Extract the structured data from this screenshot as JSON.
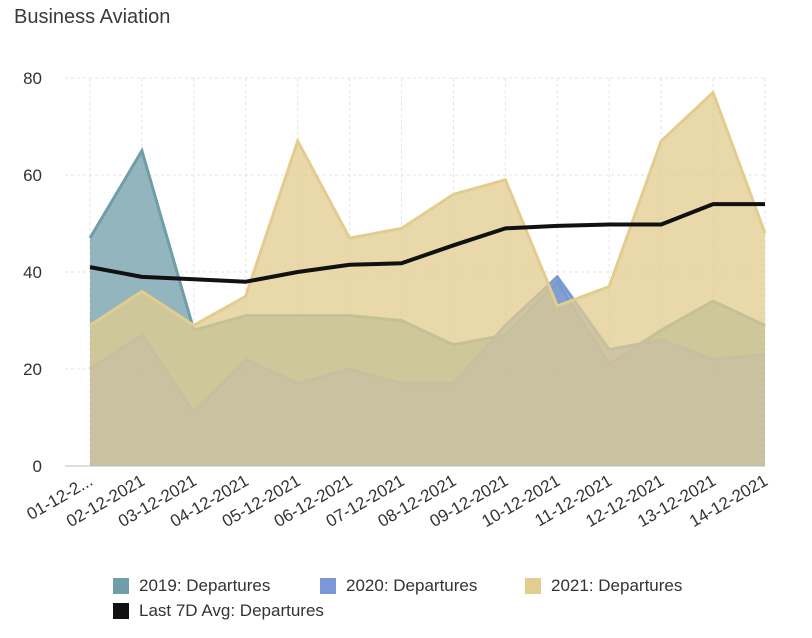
{
  "chart_data": {
    "type": "area",
    "title": "Business Aviation",
    "xlabel": "",
    "ylabel": "",
    "ylim": [
      0,
      80
    ],
    "yticks": [
      "0",
      "20",
      "40",
      "60",
      "80"
    ],
    "grid": true,
    "legend_position": "bottom",
    "categories": [
      "01-12-2...",
      "02-12-2021",
      "03-12-2021",
      "04-12-2021",
      "05-12-2021",
      "06-12-2021",
      "07-12-2021",
      "08-12-2021",
      "09-12-2021",
      "10-12-2021",
      "11-12-2021",
      "12-12-2021",
      "13-12-2021",
      "14-12-2021"
    ],
    "series": [
      {
        "name": "2019: Departures",
        "type": "area",
        "color": "#6f9ea8",
        "values": [
          47,
          65,
          28,
          31,
          31,
          31,
          30,
          25,
          27,
          38,
          21,
          28,
          34,
          29
        ]
      },
      {
        "name": "2020: Departures",
        "type": "area",
        "color": "#7b97d8",
        "values": [
          20,
          27,
          11,
          22,
          17,
          20,
          17,
          17,
          29,
          39,
          24,
          26,
          22,
          23
        ]
      },
      {
        "name": "2021: Departures",
        "type": "area",
        "color": "#e2cc8e",
        "values": [
          29,
          36,
          29,
          35,
          67,
          47,
          49,
          56,
          59,
          33,
          37,
          67,
          77,
          48
        ]
      },
      {
        "name": "Last 7D Avg: Departures",
        "type": "line",
        "color": "#111111",
        "values": [
          41,
          39,
          38.5,
          38,
          40,
          41.5,
          41.8,
          45.5,
          49,
          49.5,
          49.8,
          49.8,
          54,
          54
        ]
      }
    ]
  }
}
